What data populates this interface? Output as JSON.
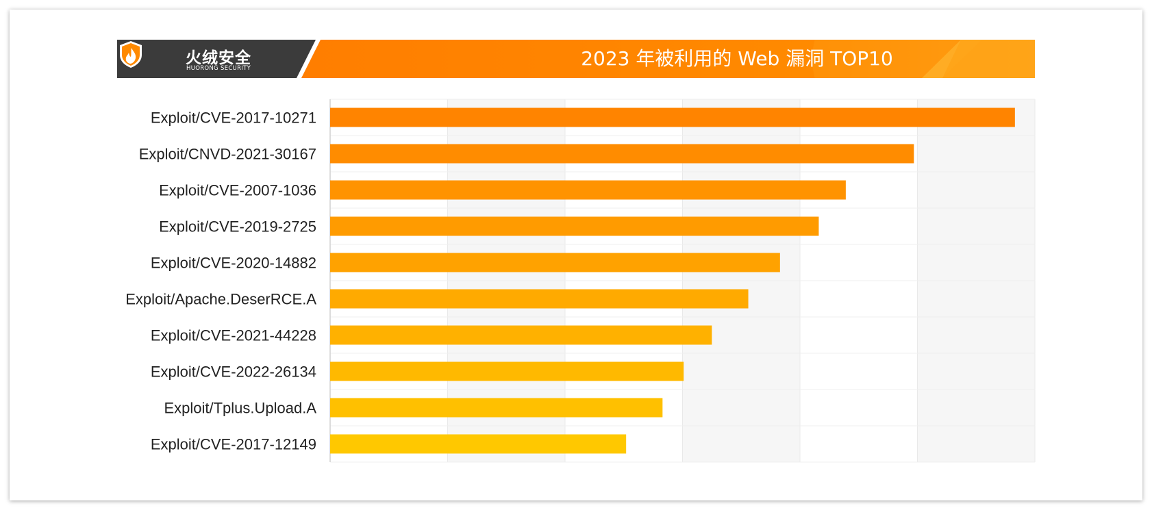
{
  "header": {
    "brand_cn": "火绒安全",
    "brand_en": "HUORONG SECURITY",
    "title": "2023 年被利用的 Web 漏洞 TOP10"
  },
  "colors": {
    "header_dark": "#3b3b3b",
    "header_orange": "#ff8a00",
    "header_orange_light": "#ffa31a",
    "bar_top": "#ff8400",
    "bar_bottom": "#ffc800",
    "grid_band": "#f6f6f6",
    "grid_line": "#e9e9e9"
  },
  "icons": {
    "logo": "shield-flame-icon"
  },
  "chart_data": {
    "type": "bar",
    "orientation": "horizontal",
    "title": "2023 年被利用的 Web 漏洞 TOP10",
    "categories": [
      "Exploit/CVE-2017-10271",
      "Exploit/CNVD-2021-30167",
      "Exploit/CVE-2007-1036",
      "Exploit/CVE-2019-2725",
      "Exploit/CVE-2020-14882",
      "Exploit/Apache.DeserRCE.A",
      "Exploit/CVE-2021-44228",
      "Exploit/CVE-2022-26134",
      "Exploit/Tplus.Upload.A",
      "Exploit/CVE-2017-12149"
    ],
    "values": [
      5.83,
      4.97,
      4.39,
      4.16,
      3.83,
      3.56,
      3.25,
      3.01,
      2.83,
      2.52
    ],
    "xlim": [
      0,
      6
    ],
    "grid": true,
    "tick_labels_visible": false,
    "xlabel": "",
    "ylabel": ""
  }
}
